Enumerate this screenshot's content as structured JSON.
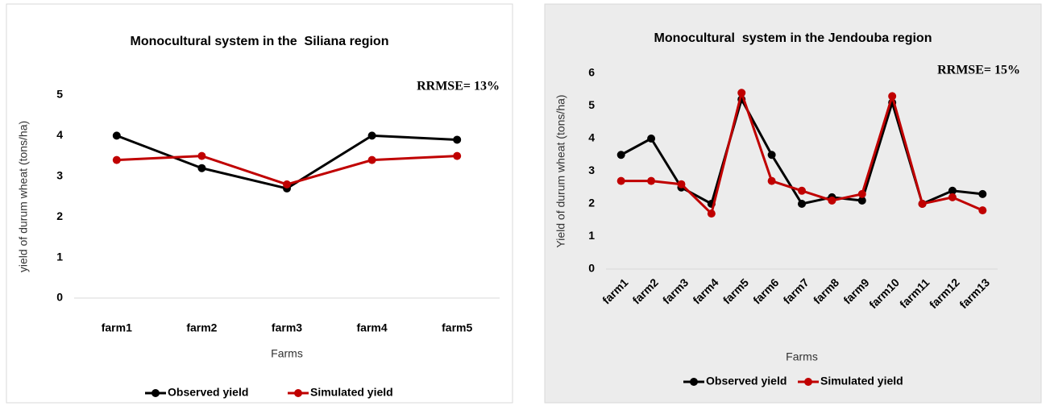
{
  "chart_data": [
    {
      "type": "line",
      "title": "Monocultural system in the  Siliana region",
      "annotation": "RRMSE= 13%",
      "y_label": "yield of durum wheat (tons/ha)",
      "x_label": "Farms",
      "categories": [
        "farm1",
        "farm2",
        "farm3",
        "farm4",
        "farm5"
      ],
      "series": [
        {
          "name": "Observed yield",
          "color": "#000000",
          "values": [
            4.0,
            3.2,
            2.7,
            4.0,
            3.9
          ]
        },
        {
          "name": "Simulated yield",
          "color": "#c00000",
          "values": [
            3.4,
            3.5,
            2.8,
            3.4,
            3.5
          ]
        }
      ],
      "ylim": [
        0,
        5
      ],
      "yticks": [
        0,
        1,
        2,
        3,
        4,
        5
      ],
      "grid": false,
      "legend": "bottom"
    },
    {
      "type": "line",
      "title": "Monocultural  system in the Jendouba region",
      "annotation": "RRMSE= 15%",
      "y_label": "Yield of durum wheat (tons/ha)",
      "x_label": "Farms",
      "categories": [
        "farm1",
        "farm2",
        "farm3",
        "farm4",
        "farm5",
        "farm6",
        "farm7",
        "farm8",
        "farm9",
        "farm10",
        "farm11",
        "farm12",
        "farm13"
      ],
      "series": [
        {
          "name": "Observed yield",
          "color": "#000000",
          "values": [
            3.5,
            4.0,
            2.5,
            2.0,
            5.2,
            3.5,
            2.0,
            2.2,
            2.1,
            5.1,
            2.0,
            2.4,
            2.3
          ]
        },
        {
          "name": "Simulated yield",
          "color": "#c00000",
          "values": [
            2.7,
            2.7,
            2.6,
            1.7,
            5.4,
            2.7,
            2.4,
            2.1,
            2.3,
            5.3,
            2.0,
            2.2,
            1.8
          ]
        }
      ],
      "ylim": [
        0,
        6
      ],
      "yticks": [
        0,
        1,
        2,
        3,
        4,
        5,
        6
      ],
      "grid": false,
      "legend": "bottom"
    }
  ]
}
